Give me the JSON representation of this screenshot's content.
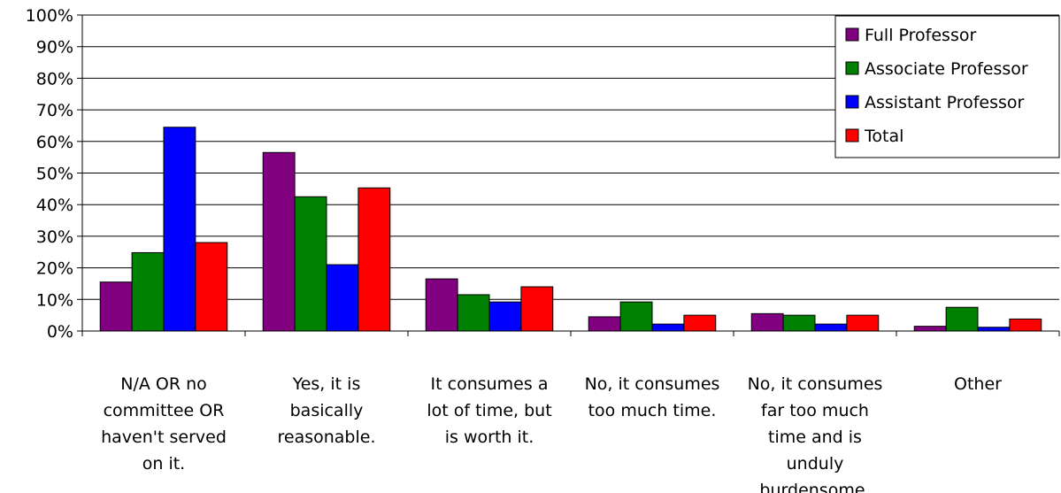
{
  "chart_data": {
    "type": "bar",
    "title": "",
    "xlabel": "",
    "ylabel": "",
    "ylim": [
      0,
      100
    ],
    "yticks": [
      0,
      10,
      20,
      30,
      40,
      50,
      60,
      70,
      80,
      90,
      100
    ],
    "ytick_suffix": "%",
    "grid": true,
    "legend_position": "top-right",
    "categories": [
      "N/A OR no committee OR haven't served on it.",
      "Yes, it is basically reasonable.",
      "It consumes a lot of time, but is worth it.",
      "No, it consumes too much time.",
      "No, it consumes far too much time and is unduly burdensome.",
      "Other"
    ],
    "category_lines": [
      [
        "N/A OR no",
        "committee OR",
        "haven't served",
        "on it."
      ],
      [
        "Yes, it is",
        "basically",
        "reasonable."
      ],
      [
        "It consumes a",
        "lot of time, but",
        "is worth it."
      ],
      [
        "No, it consumes",
        "too much time."
      ],
      [
        "No, it consumes",
        "far too much",
        "time and is",
        "unduly",
        "burdensome."
      ],
      [
        "Other"
      ]
    ],
    "series": [
      {
        "name": "Full Professor",
        "color": "#800080",
        "values": [
          15.5,
          56.5,
          16.5,
          4.5,
          5.5,
          1.5
        ]
      },
      {
        "name": "Associate Professor",
        "color": "#008000",
        "values": [
          24.8,
          42.5,
          11.5,
          9.2,
          5.0,
          7.5
        ]
      },
      {
        "name": "Assistant Professor",
        "color": "#0000FF",
        "values": [
          64.5,
          21.0,
          9.2,
          2.2,
          2.2,
          1.2
        ]
      },
      {
        "name": "Total",
        "color": "#FF0000",
        "values": [
          28.0,
          45.3,
          14.0,
          5.0,
          5.0,
          3.8
        ]
      }
    ]
  }
}
